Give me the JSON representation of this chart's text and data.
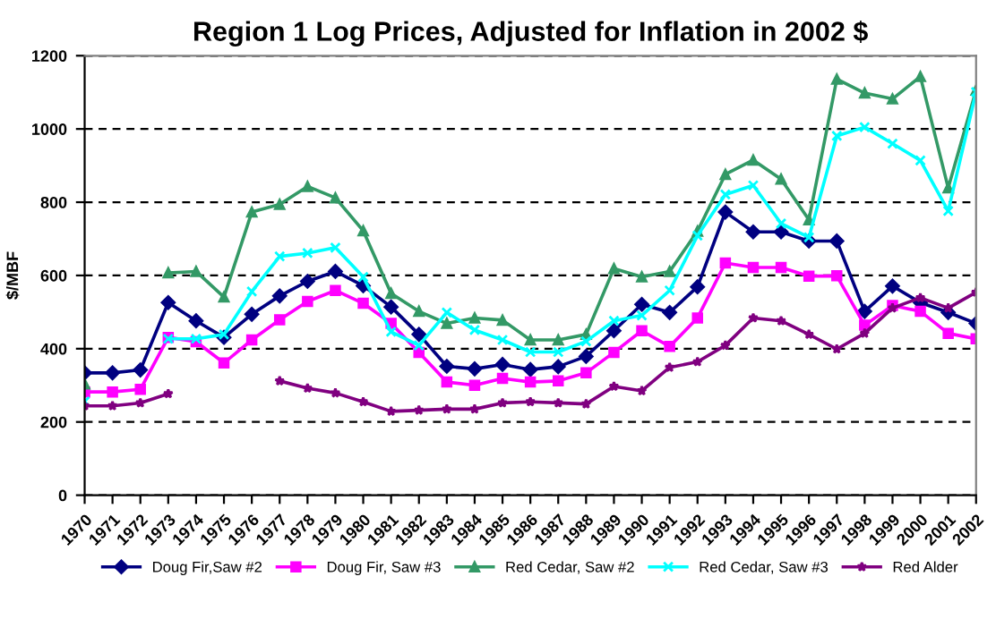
{
  "chart_data": {
    "type": "line",
    "title": "Region 1 Log Prices, Adjusted for Inflation in 2002 $",
    "ylabel": "$/MBF",
    "categories": [
      "1970",
      "1971",
      "1972",
      "1973",
      "1974",
      "1975",
      "1976",
      "1977",
      "1978",
      "1979",
      "1980",
      "1981",
      "1982",
      "1983",
      "1984",
      "1985",
      "1986",
      "1987",
      "1988",
      "1989",
      "1990",
      "1991",
      "1992",
      "1993",
      "1994",
      "1995",
      "1996",
      "1997",
      "1998",
      "1999",
      "2000",
      "2001",
      "2002"
    ],
    "series": [
      {
        "name": "Doug Fir,Saw #2",
        "color": "#000080",
        "marker": "diamond",
        "values": [
          334,
          334,
          342,
          526,
          476,
          431,
          494,
          544,
          584,
          611,
          572,
          514,
          439,
          352,
          345,
          357,
          343,
          351,
          379,
          449,
          521,
          499,
          569,
          773,
          719,
          719,
          694,
          694,
          502,
          571,
          526,
          499,
          469
        ]
      },
      {
        "name": "Doug Fir, Saw #3",
        "color": "#ff00ff",
        "marker": "square",
        "values": [
          282,
          282,
          289,
          431,
          419,
          361,
          424,
          479,
          529,
          559,
          524,
          469,
          390,
          309,
          300,
          319,
          309,
          312,
          334,
          390,
          449,
          406,
          484,
          634,
          622,
          622,
          598,
          599,
          464,
          518,
          502,
          442,
          427
        ]
      },
      {
        "name": "Red Cedar, Saw #2",
        "color": "#339966",
        "marker": "triangle",
        "values": [
          304,
          null,
          null,
          607,
          611,
          541,
          773,
          794,
          843,
          812,
          722,
          551,
          502,
          469,
          484,
          478,
          424,
          424,
          439,
          619,
          596,
          611,
          721,
          876,
          915,
          863,
          752,
          1136,
          1098,
          1082,
          1143,
          839,
          1106
        ]
      },
      {
        "name": "Red Cedar, Saw #3",
        "color": "#00ffff",
        "marker": "cross",
        "values": [
          256,
          null,
          null,
          427,
          427,
          439,
          556,
          652,
          661,
          676,
          596,
          446,
          409,
          499,
          451,
          424,
          391,
          391,
          420,
          476,
          491,
          559,
          709,
          821,
          846,
          742,
          704,
          981,
          1005,
          960,
          914,
          776,
          1101
        ]
      },
      {
        "name": "Red Alder",
        "color": "#800080",
        "marker": "star",
        "values": [
          244,
          244,
          252,
          277,
          null,
          null,
          null,
          312,
          292,
          279,
          255,
          229,
          232,
          235,
          235,
          252,
          255,
          252,
          249,
          297,
          285,
          349,
          364,
          409,
          484,
          476,
          439,
          399,
          442,
          511,
          539,
          511,
          554
        ]
      }
    ],
    "ylim": [
      0,
      1200
    ],
    "yticks": [
      0,
      200,
      400,
      600,
      800,
      1000,
      1200
    ],
    "grid": "y",
    "legend": "bottom",
    "line_style": "solid"
  }
}
